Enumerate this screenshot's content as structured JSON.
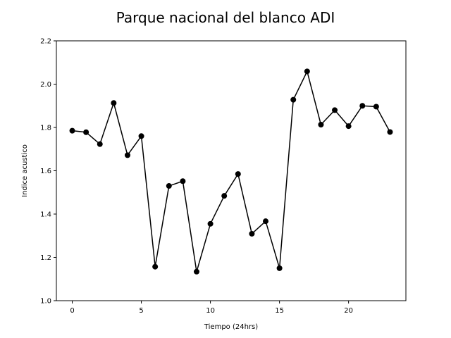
{
  "chart_data": {
    "type": "line",
    "title": "Parque nacional del blanco ADI",
    "xlabel": "Tiempo (24hrs)",
    "ylabel": "Indice acustico",
    "xlim": [
      -1.15,
      24.15
    ],
    "ylim": [
      1.0,
      2.2
    ],
    "xticks": [
      0,
      5,
      10,
      15,
      20
    ],
    "yticks": [
      1.0,
      1.2,
      1.4,
      1.6,
      1.8,
      2.0,
      2.2
    ],
    "grid": false,
    "series": [
      {
        "color": "#000000",
        "marker": "circle",
        "x": [
          0,
          1,
          2,
          3,
          4,
          5,
          6,
          7,
          8,
          9,
          10,
          11,
          12,
          13,
          14,
          15,
          16,
          17,
          18,
          19,
          20,
          21,
          22,
          23
        ],
        "y": [
          1.785,
          1.778,
          1.723,
          1.913,
          1.672,
          1.76,
          1.157,
          1.53,
          1.552,
          1.134,
          1.355,
          1.484,
          1.585,
          1.309,
          1.367,
          1.15,
          1.928,
          2.059,
          1.813,
          1.88,
          1.806,
          1.9,
          1.896,
          1.779
        ]
      }
    ]
  }
}
